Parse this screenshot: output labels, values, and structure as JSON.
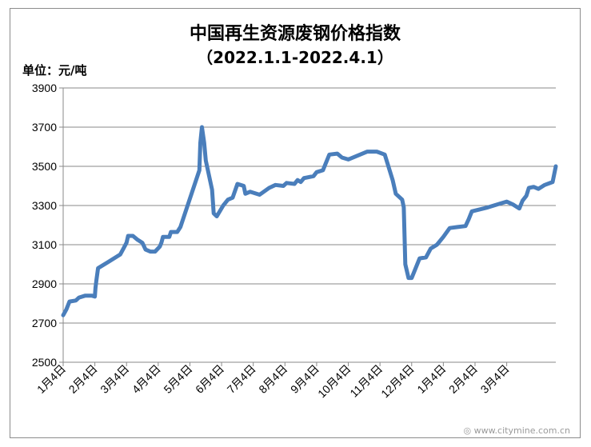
{
  "chart_data": {
    "type": "line",
    "title": "中国再生资源废钢价格指数",
    "subtitle": "（2022.1.1-2022.4.1）",
    "ylabel": "单位：元/吨",
    "ylim": [
      2500,
      3900
    ],
    "yticks": [
      2500,
      2700,
      2900,
      3100,
      3300,
      3500,
      3700,
      3900
    ],
    "grid": true,
    "line_color": "#4a7ebb",
    "xtick_labels": [
      "1月4日",
      "2月4日",
      "3月4日",
      "4月4日",
      "5月4日",
      "6月4日",
      "7月4日",
      "8月4日",
      "9月4日",
      "10月4日",
      "11月4日",
      "12月4日",
      "1月4日",
      "2月4日",
      "3月4日"
    ],
    "series": [
      {
        "name": "",
        "points": [
          [
            0.0,
            2740
          ],
          [
            0.1,
            2770
          ],
          [
            0.2,
            2810
          ],
          [
            0.4,
            2815
          ],
          [
            0.5,
            2830
          ],
          [
            0.7,
            2840
          ],
          [
            0.9,
            2840
          ],
          [
            1.0,
            2835
          ],
          [
            1.02,
            2880
          ],
          [
            1.05,
            2920
          ],
          [
            1.1,
            2980
          ],
          [
            1.4,
            3010
          ],
          [
            1.8,
            3050
          ],
          [
            1.9,
            3080
          ],
          [
            2.0,
            3110
          ],
          [
            2.05,
            3145
          ],
          [
            2.2,
            3145
          ],
          [
            2.35,
            3125
          ],
          [
            2.5,
            3110
          ],
          [
            2.6,
            3075
          ],
          [
            2.75,
            3065
          ],
          [
            2.9,
            3065
          ],
          [
            3.05,
            3090
          ],
          [
            3.1,
            3110
          ],
          [
            3.15,
            3140
          ],
          [
            3.35,
            3140
          ],
          [
            3.4,
            3165
          ],
          [
            3.6,
            3165
          ],
          [
            3.7,
            3190
          ],
          [
            4.3,
            3480
          ],
          [
            4.33,
            3620
          ],
          [
            4.38,
            3700
          ],
          [
            4.45,
            3620
          ],
          [
            4.5,
            3530
          ],
          [
            4.7,
            3380
          ],
          [
            4.75,
            3260
          ],
          [
            4.85,
            3245
          ],
          [
            5.05,
            3300
          ],
          [
            5.2,
            3330
          ],
          [
            5.35,
            3340
          ],
          [
            5.5,
            3410
          ],
          [
            5.7,
            3400
          ],
          [
            5.75,
            3360
          ],
          [
            5.9,
            3370
          ],
          [
            6.2,
            3355
          ],
          [
            6.5,
            3390
          ],
          [
            6.7,
            3405
          ],
          [
            6.95,
            3400
          ],
          [
            7.05,
            3415
          ],
          [
            7.3,
            3410
          ],
          [
            7.4,
            3430
          ],
          [
            7.5,
            3420
          ],
          [
            7.6,
            3440
          ],
          [
            7.9,
            3450
          ],
          [
            8.0,
            3470
          ],
          [
            8.2,
            3480
          ],
          [
            8.4,
            3560
          ],
          [
            8.65,
            3565
          ],
          [
            8.8,
            3545
          ],
          [
            9.0,
            3535
          ],
          [
            9.6,
            3575
          ],
          [
            9.9,
            3575
          ],
          [
            10.15,
            3560
          ],
          [
            10.4,
            3430
          ],
          [
            10.5,
            3360
          ],
          [
            10.7,
            3330
          ],
          [
            10.75,
            3290
          ],
          [
            10.8,
            3000
          ],
          [
            10.9,
            2930
          ],
          [
            11.0,
            2930
          ],
          [
            11.1,
            2970
          ],
          [
            11.25,
            3030
          ],
          [
            11.45,
            3035
          ],
          [
            11.6,
            3080
          ],
          [
            11.8,
            3100
          ],
          [
            12.0,
            3140
          ],
          [
            12.2,
            3185
          ],
          [
            12.45,
            3190
          ],
          [
            12.7,
            3195
          ],
          [
            12.8,
            3230
          ],
          [
            12.9,
            3270
          ],
          [
            13.4,
            3290
          ],
          [
            13.8,
            3310
          ],
          [
            14.0,
            3320
          ],
          [
            14.2,
            3305
          ],
          [
            14.4,
            3285
          ],
          [
            14.5,
            3325
          ],
          [
            14.62,
            3350
          ],
          [
            14.7,
            3390
          ],
          [
            14.85,
            3395
          ],
          [
            15.0,
            3385
          ],
          [
            15.2,
            3405
          ],
          [
            15.45,
            3420
          ],
          [
            15.55,
            3500
          ]
        ]
      }
    ]
  }
}
